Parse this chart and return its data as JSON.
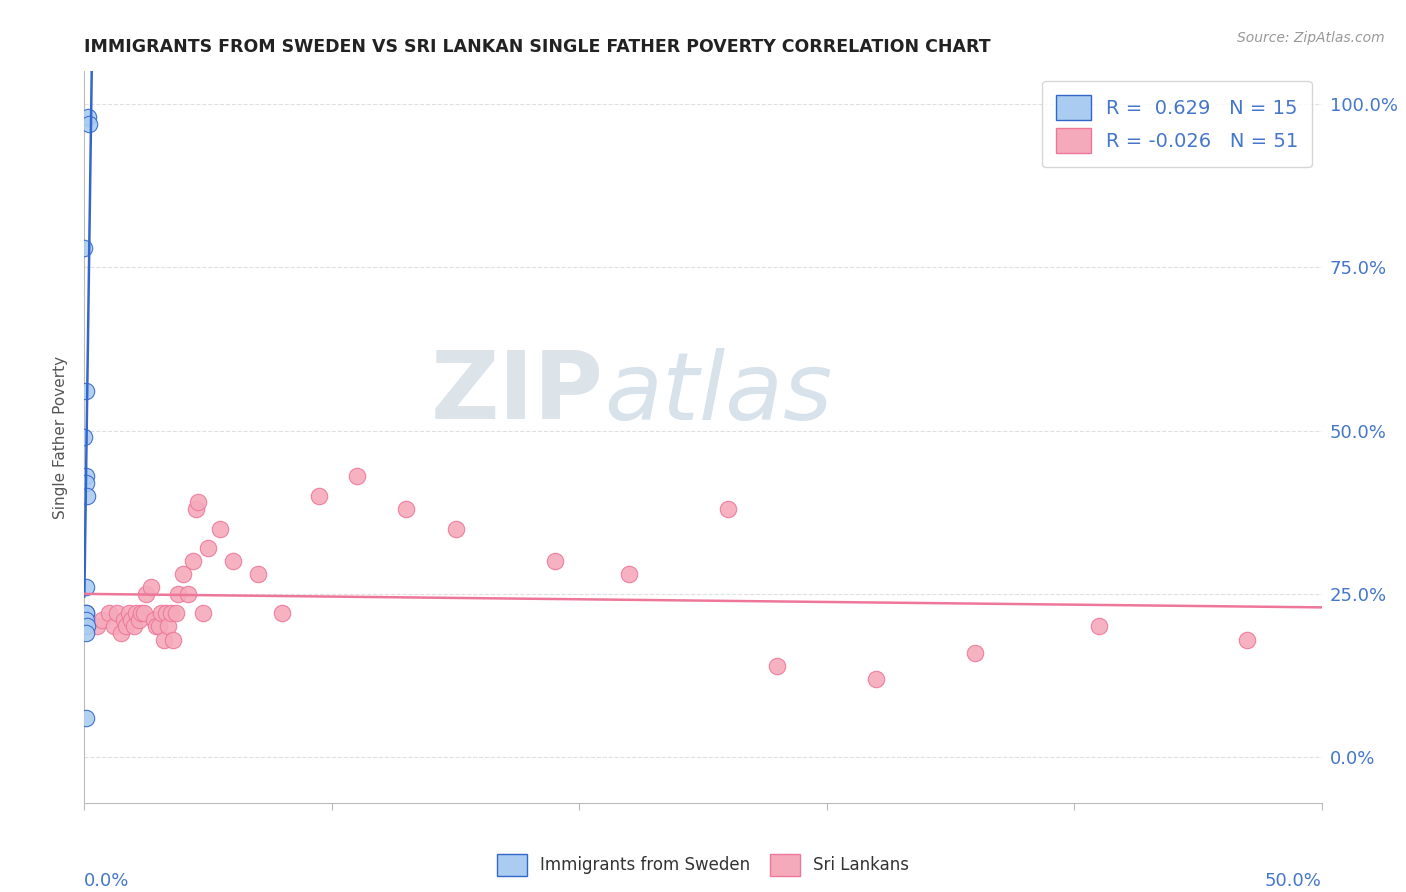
{
  "title": "IMMIGRANTS FROM SWEDEN VS SRI LANKAN SINGLE FATHER POVERTY CORRELATION CHART",
  "source": "Source: ZipAtlas.com",
  "ylabel": "Single Father Poverty",
  "legend_labels": [
    "Immigrants from Sweden",
    "Sri Lankans"
  ],
  "r_sweden": 0.629,
  "n_sweden": 15,
  "r_srilanka": -0.026,
  "n_srilanka": 51,
  "sweden_color": "#aaccf0",
  "srilanka_color": "#f5aabb",
  "sweden_line_color": "#3366cc",
  "srilanka_line_color": "#ee7799",
  "watermark_zip": "ZIP",
  "watermark_atlas": "atlas",
  "watermark_color_zip": "#c8d8e8",
  "watermark_color_atlas": "#b8cce0",
  "xlim": [
    0.0,
    0.5
  ],
  "ylim": [
    -0.07,
    1.05
  ],
  "ytick_vals": [
    0.0,
    0.25,
    0.5,
    0.75,
    1.0
  ],
  "ytick_labels": [
    "0.0%",
    "25.0%",
    "50.0%",
    "75.0%",
    "100.0%"
  ],
  "sweden_scatter_x": [
    0.0015,
    0.002,
    0.0,
    0.0005,
    0.0,
    0.0005,
    0.0005,
    0.001,
    0.0005,
    0.0005,
    0.0005,
    0.0005,
    0.001,
    0.0005,
    0.0005
  ],
  "sweden_scatter_y": [
    0.98,
    0.97,
    0.78,
    0.56,
    0.49,
    0.43,
    0.42,
    0.4,
    0.26,
    0.22,
    0.22,
    0.21,
    0.2,
    0.19,
    0.06
  ],
  "srilanka_scatter_x": [
    0.005,
    0.007,
    0.01,
    0.012,
    0.013,
    0.015,
    0.016,
    0.017,
    0.018,
    0.019,
    0.02,
    0.021,
    0.022,
    0.023,
    0.024,
    0.025,
    0.027,
    0.028,
    0.029,
    0.03,
    0.031,
    0.032,
    0.033,
    0.034,
    0.035,
    0.036,
    0.037,
    0.038,
    0.04,
    0.042,
    0.044,
    0.045,
    0.046,
    0.048,
    0.05,
    0.055,
    0.06,
    0.07,
    0.08,
    0.095,
    0.11,
    0.13,
    0.15,
    0.19,
    0.22,
    0.26,
    0.28,
    0.32,
    0.36,
    0.41,
    0.47
  ],
  "srilanka_scatter_y": [
    0.2,
    0.21,
    0.22,
    0.2,
    0.22,
    0.19,
    0.21,
    0.2,
    0.22,
    0.21,
    0.2,
    0.22,
    0.21,
    0.22,
    0.22,
    0.25,
    0.26,
    0.21,
    0.2,
    0.2,
    0.22,
    0.18,
    0.22,
    0.2,
    0.22,
    0.18,
    0.22,
    0.25,
    0.28,
    0.25,
    0.3,
    0.38,
    0.39,
    0.22,
    0.32,
    0.35,
    0.3,
    0.28,
    0.22,
    0.4,
    0.43,
    0.38,
    0.35,
    0.3,
    0.28,
    0.38,
    0.14,
    0.12,
    0.16,
    0.2,
    0.18
  ],
  "background_color": "#ffffff",
  "grid_color": "#dddddd",
  "title_color": "#222222",
  "axis_color": "#bbbbbb"
}
